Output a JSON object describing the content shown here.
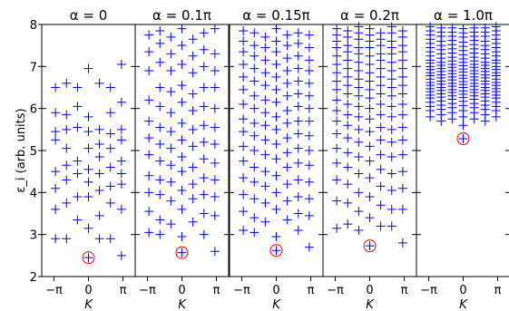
{
  "chart_data": {
    "type": "scatter",
    "ylabel": "ε_i (arb. units)",
    "xlabel": "K",
    "ylim": [
      2,
      8
    ],
    "yticks": [
      "2",
      "3",
      "4",
      "5",
      "6",
      "7",
      "8"
    ],
    "xticks": [
      "−π",
      "0",
      "π"
    ],
    "marker_color": "#0000ff",
    "highlight_color": "#ff0000",
    "panels": [
      {
        "title": "α = 0",
        "ground_state": 2.45,
        "x": [
          -3,
          -2,
          -1,
          0,
          1,
          2,
          3
        ],
        "levels": [
          [
            2.9,
            3.6,
            4.1,
            4.5,
            5.25,
            5.45,
            5.9,
            6.5
          ],
          [
            2.9,
            3.75,
            4.3,
            4.65,
            5.05,
            5.5,
            5.85,
            6.6
          ],
          [
            3.35,
            3.9,
            4.45,
            4.75,
            5.55,
            6.05,
            6.5
          ],
          [
            3.15,
            3.9,
            4.25,
            4.55,
            5.05,
            5.45,
            5.8,
            6.95
          ],
          [
            2.9,
            3.45,
            4.05,
            4.45,
            4.85,
            5.15,
            5.5,
            6.6
          ],
          [
            2.9,
            3.75,
            4.15,
            4.6,
            5.05,
            5.4,
            5.9,
            6.5
          ],
          [
            2.5,
            3.6,
            4.2,
            4.45,
            4.75,
            5.25,
            5.5,
            6.15,
            7.05
          ]
        ]
      },
      {
        "title": "α = 0.1π",
        "ground_state": 2.57,
        "x": [
          -3,
          -2,
          -1,
          0,
          1,
          2,
          3
        ],
        "levels": [
          [
            3.05,
            3.55,
            4.0,
            4.4,
            4.9,
            5.3,
            5.7,
            6.2,
            6.9,
            7.35,
            7.75
          ],
          [
            3.0,
            3.35,
            3.95,
            4.3,
            4.75,
            5.15,
            5.55,
            6.05,
            6.5,
            7.1,
            7.55,
            7.85
          ],
          [
            3.25,
            3.8,
            4.25,
            4.65,
            5.05,
            5.45,
            5.9,
            6.4,
            6.9,
            7.3,
            7.7
          ],
          [
            2.95,
            3.6,
            4.05,
            4.5,
            4.85,
            5.25,
            5.65,
            6.15,
            6.55,
            7.05,
            7.5,
            7.9
          ],
          [
            3.3,
            3.85,
            4.2,
            4.6,
            5.1,
            5.5,
            5.95,
            6.35,
            6.85,
            7.25,
            7.65
          ],
          [
            3.0,
            3.5,
            3.95,
            4.35,
            4.8,
            5.2,
            5.6,
            6.05,
            6.5,
            7.0,
            7.4,
            7.8
          ],
          [
            2.6,
            3.45,
            3.9,
            4.3,
            4.7,
            5.15,
            5.55,
            6.0,
            6.5,
            6.9,
            7.3,
            7.9
          ]
        ]
      },
      {
        "title": "α = 0.15π",
        "ground_state": 2.62,
        "x": [
          -3,
          -2,
          -1,
          0,
          1,
          2,
          3
        ],
        "levels": [
          [
            3.1,
            3.55,
            3.95,
            4.35,
            4.75,
            5.1,
            5.45,
            5.75,
            6.1,
            6.45,
            6.75,
            7.05,
            7.35,
            7.6,
            7.85
          ],
          [
            3.05,
            3.4,
            3.85,
            4.25,
            4.6,
            5.0,
            5.35,
            5.65,
            6.0,
            6.3,
            6.65,
            6.95,
            7.25,
            7.5,
            7.8
          ],
          [
            3.3,
            3.75,
            4.15,
            4.5,
            4.9,
            5.25,
            5.6,
            5.9,
            6.2,
            6.55,
            6.85,
            7.15,
            7.45,
            7.7
          ],
          [
            2.95,
            3.6,
            4.0,
            4.4,
            4.8,
            5.15,
            5.5,
            5.8,
            6.15,
            6.45,
            6.75,
            7.05,
            7.35,
            7.6,
            7.9
          ],
          [
            3.35,
            3.8,
            4.2,
            4.6,
            4.95,
            5.3,
            5.65,
            5.95,
            6.3,
            6.6,
            6.9,
            7.2,
            7.5,
            7.75
          ],
          [
            3.1,
            3.5,
            3.9,
            4.3,
            4.7,
            5.05,
            5.4,
            5.7,
            6.05,
            6.35,
            6.65,
            6.95,
            7.25,
            7.55,
            7.8
          ],
          [
            2.7,
            3.45,
            3.85,
            4.25,
            4.65,
            5.0,
            5.35,
            5.7,
            6.0,
            6.3,
            6.6,
            6.9,
            7.15,
            7.45,
            7.75
          ]
        ]
      },
      {
        "title": "α = 0.2π",
        "ground_state": 2.73,
        "x": [
          -3,
          -2,
          -1,
          0,
          1,
          2,
          3
        ],
        "levels": [
          [
            3.15,
            3.8,
            4.3,
            4.7,
            5.05,
            5.4,
            5.7,
            5.95,
            6.2,
            6.45,
            6.65,
            6.85,
            7.05,
            7.25,
            7.45,
            7.6,
            7.75,
            7.9
          ],
          [
            3.25,
            3.75,
            4.2,
            4.6,
            4.95,
            5.3,
            5.6,
            5.85,
            6.1,
            6.35,
            6.55,
            6.75,
            6.95,
            7.15,
            7.35,
            7.5,
            7.7,
            7.85
          ],
          [
            3.1,
            3.55,
            4.0,
            4.45,
            4.85,
            5.2,
            5.5,
            5.8,
            6.05,
            6.3,
            6.5,
            6.7,
            6.9,
            7.1,
            7.3,
            7.45,
            7.65,
            7.8,
            7.95
          ],
          [
            3.4,
            3.9,
            4.35,
            4.75,
            5.1,
            5.45,
            5.75,
            6.0,
            6.25,
            6.45,
            6.65,
            6.85,
            7.05,
            7.25,
            7.45,
            7.6,
            7.75,
            7.9
          ],
          [
            3.2,
            3.7,
            4.15,
            4.55,
            4.9,
            5.25,
            5.55,
            5.85,
            6.1,
            6.35,
            6.55,
            6.75,
            6.95,
            7.15,
            7.3,
            7.5,
            7.65,
            7.8
          ],
          [
            3.2,
            3.6,
            4.05,
            4.45,
            4.85,
            5.2,
            5.5,
            5.8,
            6.05,
            6.3,
            6.5,
            6.7,
            6.9,
            7.1,
            7.3,
            7.45,
            7.6,
            7.8,
            7.95
          ],
          [
            2.8,
            3.6,
            4.1,
            4.5,
            4.9,
            5.25,
            5.55,
            5.85,
            6.1,
            6.35,
            6.55,
            6.75,
            6.95,
            7.15,
            7.35,
            7.5,
            7.7,
            7.85
          ]
        ]
      },
      {
        "title": "α = 1.0π",
        "ground_state": 5.28,
        "x": [
          -3,
          -2,
          -1,
          0,
          1,
          2,
          3
        ],
        "levels": [
          [
            5.8,
            5.95,
            6.05,
            6.15,
            6.25,
            6.32,
            6.4,
            6.47,
            6.55,
            6.62,
            6.7,
            6.78,
            6.85,
            6.93,
            7.0,
            7.08,
            7.15,
            7.25,
            7.35,
            7.45,
            7.55,
            7.65,
            7.75,
            7.85,
            7.95
          ],
          [
            5.7,
            5.85,
            5.98,
            6.08,
            6.18,
            6.27,
            6.35,
            6.43,
            6.5,
            6.58,
            6.65,
            6.73,
            6.8,
            6.88,
            6.95,
            7.03,
            7.1,
            7.2,
            7.3,
            7.4,
            7.5,
            7.6,
            7.72,
            7.82,
            7.92
          ],
          [
            5.75,
            5.9,
            6.02,
            6.12,
            6.22,
            6.3,
            6.38,
            6.45,
            6.53,
            6.6,
            6.68,
            6.75,
            6.83,
            6.9,
            6.98,
            7.05,
            7.13,
            7.22,
            7.32,
            7.42,
            7.52,
            7.62,
            7.72,
            7.82,
            7.92
          ],
          [
            5.6,
            5.8,
            5.95,
            6.07,
            6.17,
            6.26,
            6.34,
            6.42,
            6.5,
            6.57,
            6.64,
            6.72,
            6.79,
            6.87,
            6.94,
            7.02,
            7.1,
            7.18,
            7.28,
            7.38,
            7.48,
            7.58,
            7.7,
            7.8,
            7.9
          ],
          [
            5.75,
            5.9,
            6.02,
            6.12,
            6.22,
            6.3,
            6.38,
            6.45,
            6.53,
            6.6,
            6.68,
            6.75,
            6.83,
            6.9,
            6.98,
            7.05,
            7.13,
            7.22,
            7.32,
            7.42,
            7.52,
            7.62,
            7.72,
            7.82,
            7.92
          ],
          [
            5.7,
            5.85,
            5.98,
            6.08,
            6.18,
            6.27,
            6.35,
            6.43,
            6.5,
            6.58,
            6.65,
            6.73,
            6.8,
            6.88,
            6.95,
            7.03,
            7.1,
            7.2,
            7.3,
            7.4,
            7.5,
            7.6,
            7.72,
            7.82,
            7.92
          ],
          [
            5.8,
            5.95,
            6.05,
            6.15,
            6.25,
            6.32,
            6.4,
            6.47,
            6.55,
            6.62,
            6.7,
            6.78,
            6.85,
            6.93,
            7.0,
            7.08,
            7.15,
            7.25,
            7.35,
            7.45,
            7.55,
            7.65,
            7.75,
            7.85,
            7.95
          ]
        ]
      }
    ]
  }
}
